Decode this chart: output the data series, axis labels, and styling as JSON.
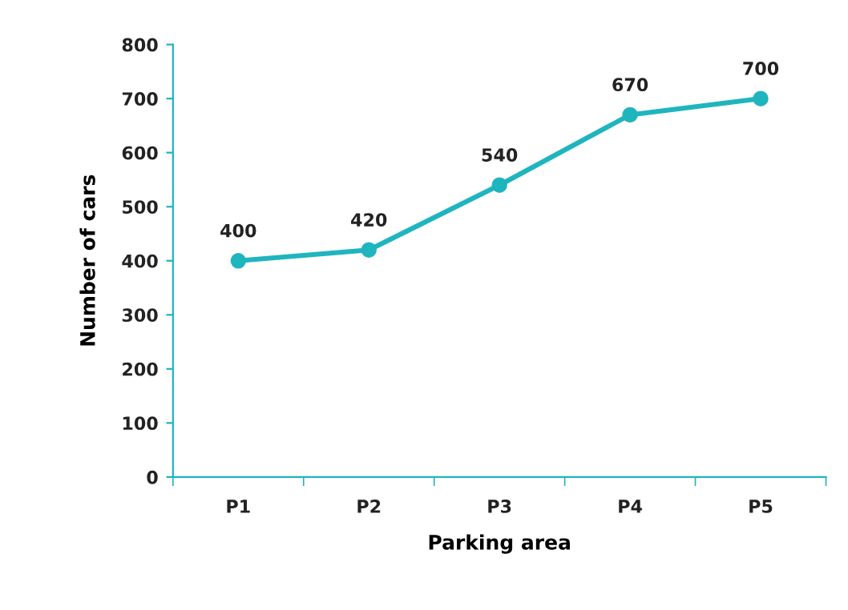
{
  "chart_data": {
    "type": "line",
    "xlabel": "Parking area",
    "ylabel": "Number of cars",
    "categories": [
      "P1",
      "P2",
      "P3",
      "P4",
      "P5"
    ],
    "series": [
      {
        "color": "#1fb5bf",
        "values": [
          400,
          420,
          540,
          670,
          700
        ]
      }
    ],
    "ylim": [
      0,
      800
    ],
    "yticks": [
      0,
      100,
      200,
      300,
      400,
      500,
      600,
      700,
      800
    ],
    "data_labels": true,
    "marker": "circle",
    "line_style": "solid",
    "grid": false
  }
}
